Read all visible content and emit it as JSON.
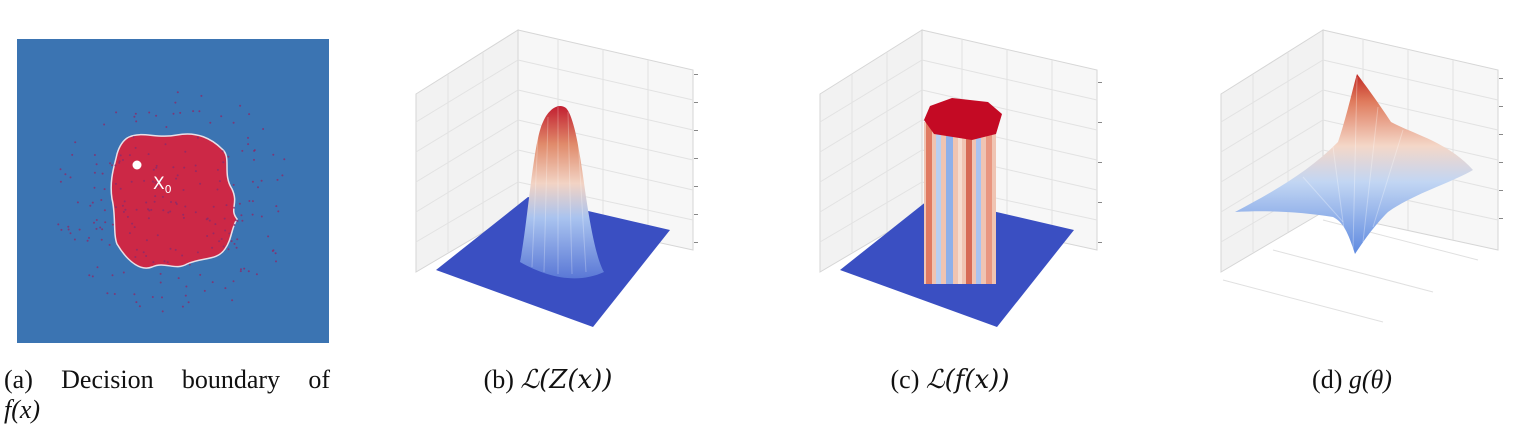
{
  "figure": {
    "panel_a": {
      "point_label": "X",
      "point_subscript": "0",
      "caption_prefix": "(a)",
      "caption_words": [
        "Decision",
        "boundary",
        "of"
      ],
      "caption_math": "f(x)",
      "colors": {
        "outside": "#3b74b2",
        "inside": "#cc2846",
        "boundary": "#e8e0e8",
        "point": "#ffffff",
        "dots": "#8a2b6a"
      }
    },
    "panel_b": {
      "caption_prefix": "(b)",
      "caption_math": "ℒ(Z(x))",
      "colors": {
        "floor": "#3a4fc2",
        "peak": "#c61e30"
      }
    },
    "panel_c": {
      "caption_prefix": "(c)",
      "caption_math": "ℒ(f(x))",
      "colors": {
        "floor": "#3a4fc2",
        "top": "#c40a24"
      }
    },
    "panel_d": {
      "caption_prefix": "(d)",
      "caption_math": "g(θ)",
      "colors": {
        "low": "#4a78d8",
        "high": "#c8302a"
      }
    }
  }
}
